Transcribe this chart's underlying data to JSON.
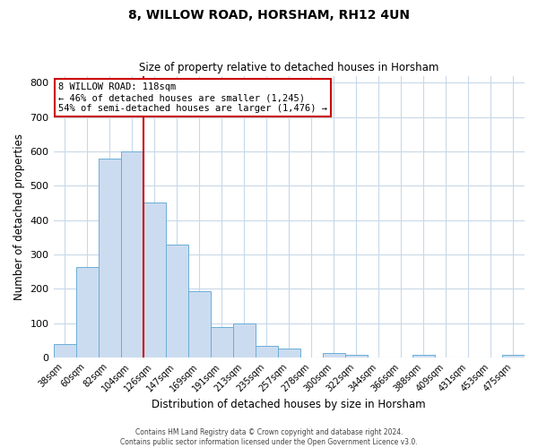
{
  "title": "8, WILLOW ROAD, HORSHAM, RH12 4UN",
  "subtitle": "Size of property relative to detached houses in Horsham",
  "xlabel": "Distribution of detached houses by size in Horsham",
  "ylabel": "Number of detached properties",
  "bar_labels": [
    "38sqm",
    "60sqm",
    "82sqm",
    "104sqm",
    "126sqm",
    "147sqm",
    "169sqm",
    "191sqm",
    "213sqm",
    "235sqm",
    "257sqm",
    "278sqm",
    "300sqm",
    "322sqm",
    "344sqm",
    "366sqm",
    "388sqm",
    "409sqm",
    "431sqm",
    "453sqm",
    "475sqm"
  ],
  "bar_values": [
    40,
    263,
    580,
    600,
    450,
    330,
    193,
    88,
    100,
    35,
    25,
    0,
    12,
    9,
    0,
    0,
    9,
    0,
    0,
    0,
    9
  ],
  "bar_color": "#ccdcf0",
  "bar_edge_color": "#6baed6",
  "ylim": [
    0,
    820
  ],
  "yticks": [
    0,
    100,
    200,
    300,
    400,
    500,
    600,
    700,
    800
  ],
  "red_line_index": 3,
  "annotation_title": "8 WILLOW ROAD: 118sqm",
  "annotation_line1": "← 46% of detached houses are smaller (1,245)",
  "annotation_line2": "54% of semi-detached houses are larger (1,476) →",
  "annotation_box_color": "#ffffff",
  "annotation_box_edge_color": "#cc0000",
  "footer_line1": "Contains HM Land Registry data © Crown copyright and database right 2024.",
  "footer_line2": "Contains public sector information licensed under the Open Government Licence v3.0.",
  "background_color": "#ffffff",
  "grid_color": "#c8d8e8"
}
